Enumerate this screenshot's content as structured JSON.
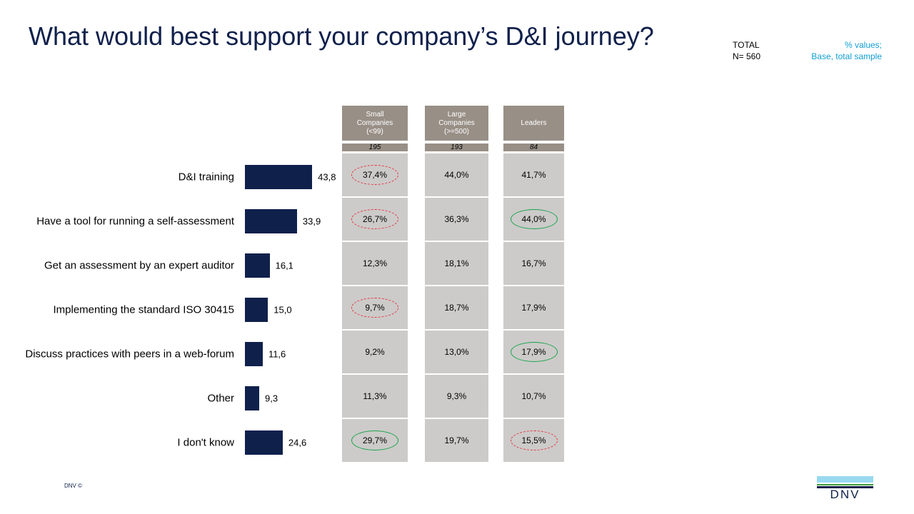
{
  "title": "What would best support your company’s D&I journey?",
  "total": {
    "label": "TOTAL",
    "n": "N= 560"
  },
  "note": {
    "line1": "% values;",
    "line2": "Base, total sample"
  },
  "footer": "DNV ©",
  "logo": {
    "text": "DNV",
    "colors": [
      "#99d9f0",
      "#3f9c35",
      "#0f204b"
    ]
  },
  "colors": {
    "bar": "#0f204b",
    "header": "#988f86",
    "cell": "#cccbca",
    "low": "#e8333f",
    "high": "#1aa34a"
  },
  "chart_data": {
    "type": "bar",
    "orientation": "horizontal",
    "categories": [
      "D&I training",
      "Have a tool for running  a self-assessment",
      "Get an assessment by an expert auditor",
      "Implementing  the standard ISO 30415",
      "Discuss practices with peers in a web-forum",
      "Other",
      "I don't know"
    ],
    "values": [
      43.8,
      33.9,
      16.1,
      15.0,
      11.6,
      9.3,
      24.6
    ],
    "value_labels": [
      "43,8",
      "33,9",
      "16,1",
      "15,0",
      "11,6",
      "9,3",
      "24,6"
    ],
    "table": {
      "columns": [
        {
          "header": [
            "Small",
            "Companies",
            "(<99)"
          ],
          "n": "195",
          "values": [
            "37,4%",
            "26,7%",
            "12,3%",
            "9,7%",
            "9,2%",
            "11,3%",
            "29,7%"
          ],
          "marks": [
            "low",
            "low",
            null,
            "low",
            null,
            null,
            "high"
          ]
        },
        {
          "header": [
            "Large",
            "Companies",
            "(>=500)"
          ],
          "n": "193",
          "values": [
            "44,0%",
            "36,3%",
            "18,1%",
            "18,7%",
            "13,0%",
            "9,3%",
            "19,7%"
          ],
          "marks": [
            null,
            null,
            null,
            null,
            null,
            null,
            null
          ]
        },
        {
          "header": [
            "Leaders"
          ],
          "n": "84",
          "values": [
            "41,7%",
            "44,0%",
            "16,7%",
            "17,9%",
            "17,9%",
            "10,7%",
            "15,5%"
          ],
          "marks": [
            null,
            "high",
            null,
            null,
            "high",
            null,
            "low"
          ]
        }
      ]
    }
  }
}
